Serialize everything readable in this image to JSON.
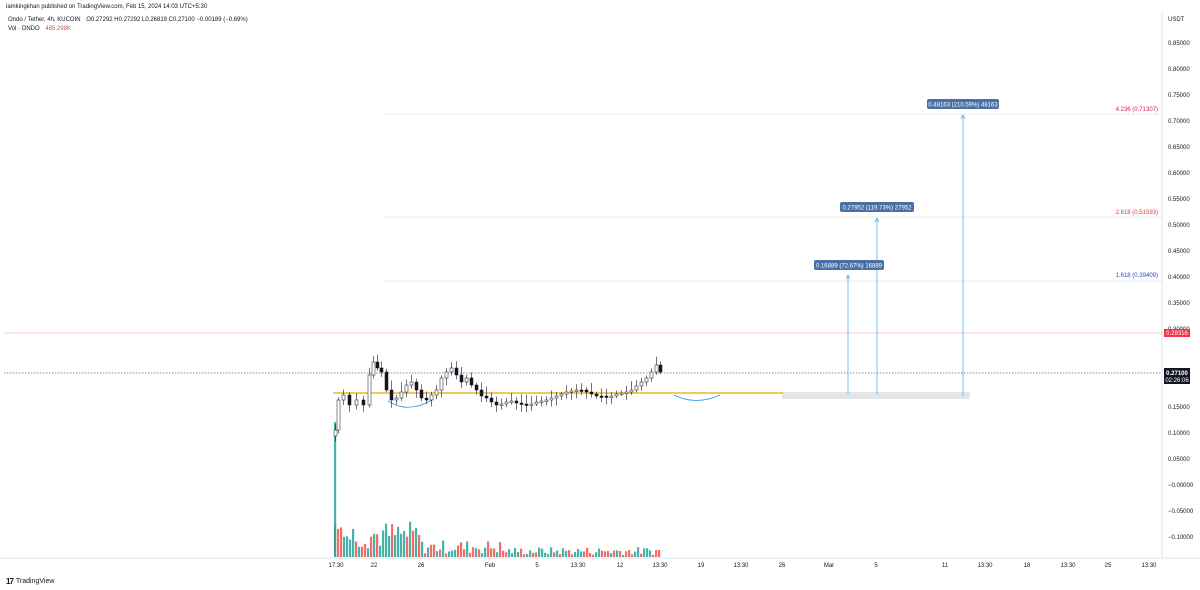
{
  "header": {
    "published_line": "lamkingkhan published on TradingView.com, Feb 15, 2024 14:03 UTC+5:30"
  },
  "legend": {
    "symbol": "Ondo / Tether, 4h, KUCOIN",
    "ohlc": "O0.27292 H0.27292 L0.26819 C0.27100 −0.00189 (−0.69%)",
    "vol_label": "Vol · ONDO",
    "vol_value": "485.298K"
  },
  "price_axis": {
    "currency": "USDT",
    "ticks": [
      "0.85000",
      "0.80000",
      "0.75000",
      "0.70000",
      "0.65000",
      "0.60000",
      "0.55000",
      "0.50000",
      "0.45000",
      "0.40000",
      "0.35000",
      "0.30000",
      "0.20000",
      "0.15000",
      "0.10000",
      "0.05000",
      "−0.00000",
      "−0.05000",
      "−0.10000"
    ],
    "red_line_label": "0.29316",
    "last_price_label": "0.27100",
    "countdown_label": "02:26:06"
  },
  "time_axis": {
    "ticks": [
      "17:30",
      "22",
      "26",
      "Feb",
      "5",
      "13:30",
      "12",
      "13:30",
      "19",
      "13:30",
      "26",
      "Mar",
      "5",
      "11",
      "13:30",
      "18",
      "13:30",
      "25",
      "13:30"
    ]
  },
  "fib_levels": [
    {
      "label": "4.236 (0.71307)",
      "color": "#d81b60"
    },
    {
      "label": "2.618 (0.51593)",
      "color": "#e53935"
    },
    {
      "label": "1.618 (0.39409)",
      "color": "#3949ab"
    }
  ],
  "targets": [
    {
      "label": "0.48163 (210.59%) 48163"
    },
    {
      "label": "0.27952 (119.73%) 27952"
    },
    {
      "label": "0.16889 (72.67%) 16889"
    }
  ],
  "colors": {
    "up": "#26a69a",
    "down": "#ef5350",
    "support": "#f0a500",
    "target_box": "#4a6fa5",
    "arrow": "#2196f3",
    "red_line": "#f23645"
  },
  "footer": {
    "brand": "TradingView"
  },
  "chart_data": {
    "type": "candlestick",
    "symbol": "ONDO/USDT",
    "timeframe": "4h",
    "exchange": "KUCOIN",
    "ylim": [
      -0.12,
      0.88
    ],
    "annotations": [
      {
        "type": "horizontal",
        "value": 0.29316
      },
      {
        "type": "horizontal",
        "value": 0.271
      },
      {
        "type": "support_line",
        "value": 0.23
      }
    ]
  }
}
